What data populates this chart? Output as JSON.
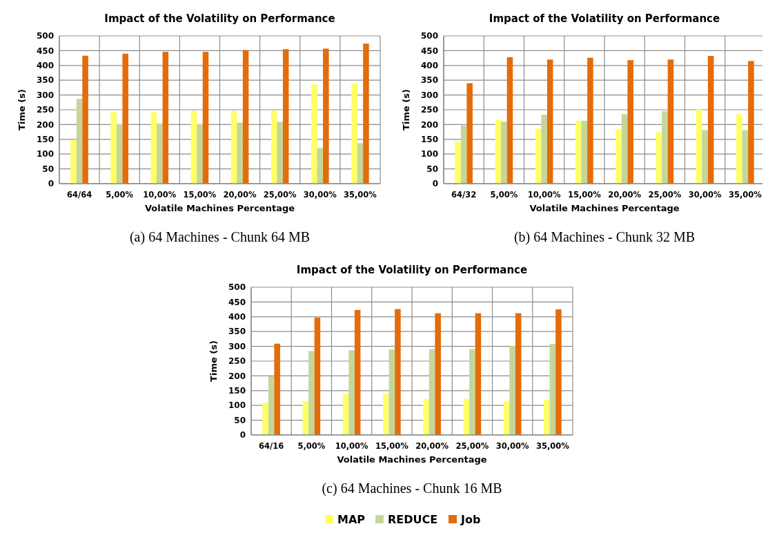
{
  "chart_data": [
    {
      "type": "bar",
      "title": "Impact of the Volatility on Performance",
      "xlabel": "Volatile Machines Percentage",
      "ylabel": "Time (s)",
      "categories": [
        "64/64",
        "5,00%",
        "10,00%",
        "15,00%",
        "20,00%",
        "25,00%",
        "30,00%",
        "35,00%"
      ],
      "series": [
        {
          "color": "#ffff66",
          "values": [
            148,
            242,
            242,
            246,
            246,
            248,
            337,
            339
          ]
        },
        {
          "color": "#c4d79b",
          "values": [
            287,
            201,
            203,
            201,
            207,
            209,
            121,
            137
          ]
        },
        {
          "color": "#e46c0a",
          "values": [
            433,
            440,
            446,
            446,
            452,
            455,
            457,
            474
          ]
        }
      ],
      "ylim": [
        0,
        500
      ],
      "yticks": [
        0,
        50,
        100,
        150,
        200,
        250,
        300,
        350,
        400,
        450,
        500
      ],
      "grid": true,
      "legend": false,
      "annotations": [
        "(a) 64 Machines - Chunk 64 MB"
      ]
    },
    {
      "type": "bar",
      "title": "Impact of the Volatility on Performance",
      "xlabel": "Volatile Machines Percentage",
      "ylabel": "Time (s)",
      "categories": [
        "64/32",
        "5,00%",
        "10,00%",
        "15,00%",
        "20,00%",
        "25,00%",
        "30,00%",
        "35,00%"
      ],
      "series": [
        {
          "color": "#ffff66",
          "values": [
            142,
            217,
            186,
            212,
            183,
            175,
            251,
            235
          ]
        },
        {
          "color": "#c4d79b",
          "values": [
            197,
            210,
            233,
            213,
            235,
            245,
            181,
            181
          ]
        },
        {
          "color": "#e46c0a",
          "values": [
            340,
            428,
            420,
            426,
            418,
            420,
            432,
            415
          ]
        }
      ],
      "ylim": [
        0,
        500
      ],
      "yticks": [
        0,
        50,
        100,
        150,
        200,
        250,
        300,
        350,
        400,
        450,
        500
      ],
      "grid": true,
      "legend": false,
      "annotations": [
        "(b) 64 Machines - Chunk 32 MB"
      ]
    },
    {
      "type": "bar",
      "title": "Impact of the Volatility on Performance",
      "xlabel": "Volatile Machines Percentage",
      "ylabel": "Time (s)",
      "categories": [
        "64/16",
        "5,00%",
        "10,00%",
        "15,00%",
        "20,00%",
        "25,00%",
        "30,00%",
        "35,00%"
      ],
      "series": [
        {
          "name": "MAP",
          "color": "#ffff66",
          "values": [
            109,
            114,
            139,
            139,
            122,
            122,
            113,
            118
          ]
        },
        {
          "name": "REDUCE",
          "color": "#c4d79b",
          "values": [
            199,
            284,
            287,
            289,
            290,
            290,
            301,
            308
          ]
        },
        {
          "name": "Job",
          "color": "#e46c0a",
          "values": [
            309,
            397,
            423,
            426,
            412,
            412,
            412,
            425
          ]
        }
      ],
      "ylim": [
        0,
        500
      ],
      "yticks": [
        0,
        50,
        100,
        150,
        200,
        250,
        300,
        350,
        400,
        450,
        500
      ],
      "grid": true,
      "legend": "bottom",
      "annotations": [
        "(c) 64 Machines - Chunk 16 MB"
      ]
    }
  ]
}
